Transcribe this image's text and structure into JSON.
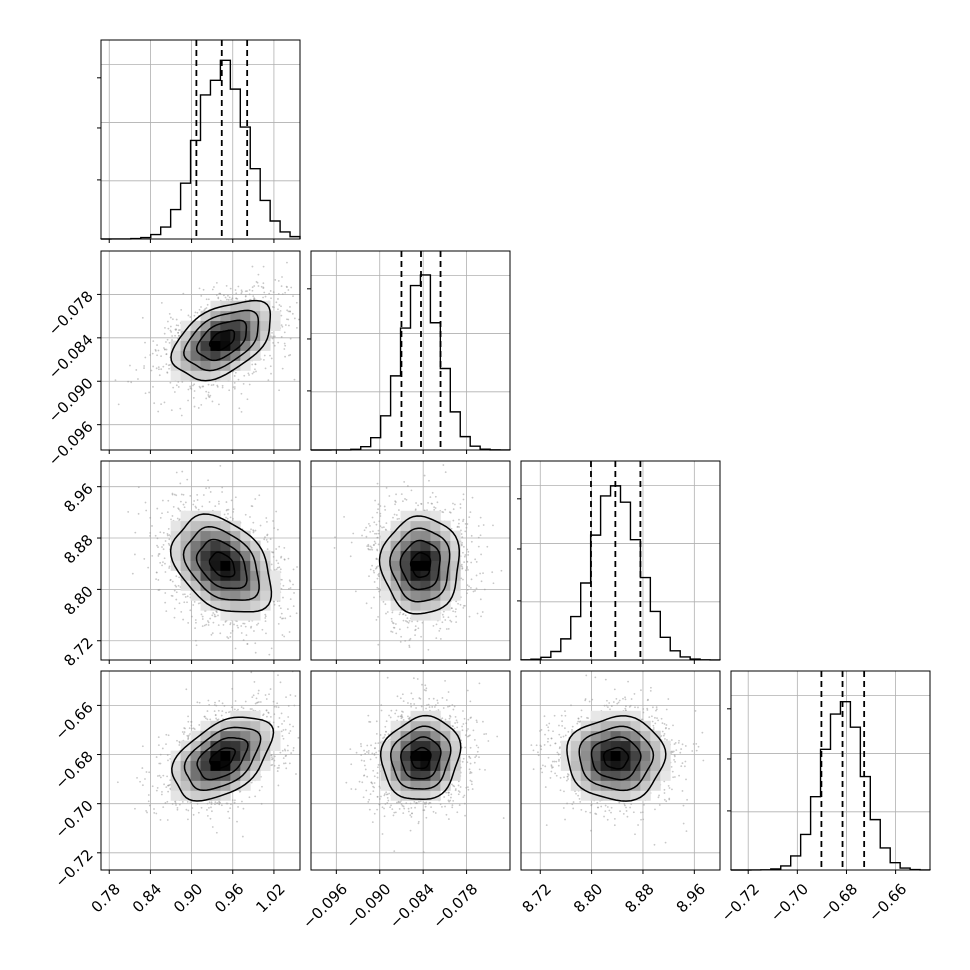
{
  "chart_data": {
    "type": "corner",
    "grid": true,
    "colors": {
      "line": "#000000",
      "grid": "#b0b0b0",
      "points": "#9a9a9a"
    },
    "params": [
      {
        "range": [
          0.768,
          1.058
        ],
        "ticks": [
          0.78,
          0.84,
          0.9,
          0.96,
          1.02
        ],
        "tick_labels": [
          "0.78",
          "0.84",
          "0.90",
          "0.96",
          "1.02"
        ],
        "mean": 0.945,
        "std": 0.036,
        "quantiles": [
          0.907,
          0.944,
          0.981
        ]
      },
      {
        "range": [
          -0.0995,
          -0.072
        ],
        "ticks": [
          -0.096,
          -0.09,
          -0.084,
          -0.078
        ],
        "tick_labels": [
          "−0.096",
          "−0.090",
          "−0.084",
          "−0.078"
        ],
        "mean": -0.0843,
        "std": 0.0027,
        "quantiles": [
          -0.087,
          -0.0843,
          -0.0816
        ]
      },
      {
        "range": [
          8.69,
          9.0
        ],
        "ticks": [
          8.72,
          8.8,
          8.88,
          8.96
        ],
        "tick_labels": [
          "8.72",
          "8.80",
          "8.88",
          "8.96"
        ],
        "mean": 8.838,
        "std": 0.038,
        "quantiles": [
          8.799,
          8.837,
          8.876
        ]
      },
      {
        "range": [
          -0.727,
          -0.646
        ],
        "ticks": [
          -0.72,
          -0.7,
          -0.68,
          -0.66
        ],
        "tick_labels": [
          "−0.72",
          "−0.70",
          "−0.68",
          "−0.66"
        ],
        "mean": -0.6815,
        "std": 0.0085,
        "quantiles": [
          -0.6902,
          -0.6816,
          -0.6728
        ]
      }
    ],
    "correlations": [
      [
        1.0,
        0.45,
        -0.35,
        0.45
      ],
      [
        0.45,
        1.0,
        0.0,
        0.1
      ],
      [
        -0.35,
        0.0,
        1.0,
        0.0
      ],
      [
        0.45,
        0.1,
        0.0,
        1.0
      ]
    ],
    "contour_sigmas": [
      0.5,
      1.0,
      1.5,
      2.0
    ]
  }
}
